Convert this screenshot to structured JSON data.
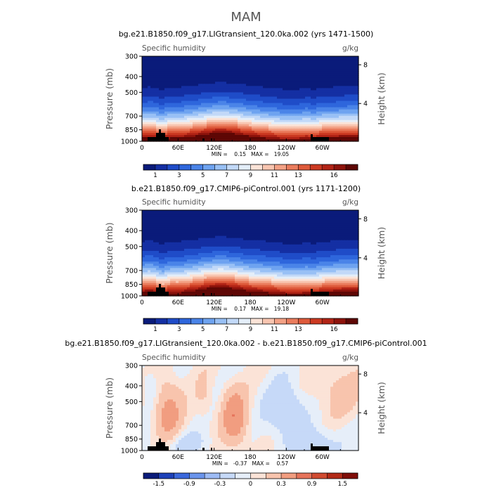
{
  "figure_title": "MAM",
  "chart_data": [
    {
      "type": "heatmap",
      "title": "bg.e21.B1850.f09_g17.LIGtransient_120.0ka.002 (yrs 1471-1500)",
      "variable": "Specific humidity",
      "units": "g/kg",
      "ylabel": "Pressure (mb)",
      "ylabel_right": "Height (km)",
      "pressure_ticks": [
        "300",
        "400",
        "500",
        "700",
        "850",
        "1000"
      ],
      "height_ticks": [
        "8",
        "4"
      ],
      "x_ticks": [
        "0",
        "60E",
        "120E",
        "180",
        "120W",
        "60W"
      ],
      "xlim": [
        0,
        360
      ],
      "ylim": [
        1000,
        300
      ],
      "min_max": "MIN =    0.15   MAX =   19.05",
      "min": 0.15,
      "max": 19.05,
      "colorbar_levels": [
        0,
        1,
        2,
        3,
        4,
        5,
        6,
        7,
        8,
        9,
        10,
        11,
        12,
        13,
        14,
        15,
        16,
        17
      ],
      "colorbar_labels": [
        "1",
        "3",
        "5",
        "7",
        "9",
        "11",
        "13",
        "16"
      ]
    },
    {
      "type": "heatmap",
      "title": "b.e21.B1850.f09_g17.CMIP6-piControl.001 (yrs 1171-1200)",
      "variable": "Specific humidity",
      "units": "g/kg",
      "ylabel": "Pressure (mb)",
      "ylabel_right": "Height (km)",
      "pressure_ticks": [
        "300",
        "400",
        "500",
        "700",
        "850",
        "1000"
      ],
      "height_ticks": [
        "8",
        "4"
      ],
      "x_ticks": [
        "0",
        "60E",
        "120E",
        "180",
        "120W",
        "60W"
      ],
      "xlim": [
        0,
        360
      ],
      "ylim": [
        1000,
        300
      ],
      "min_max": "MIN =    0.17   MAX =   19.18",
      "min": 0.17,
      "max": 19.18,
      "colorbar_levels": [
        0,
        1,
        2,
        3,
        4,
        5,
        6,
        7,
        8,
        9,
        10,
        11,
        12,
        13,
        14,
        15,
        16,
        17
      ],
      "colorbar_labels": [
        "1",
        "3",
        "5",
        "7",
        "9",
        "11",
        "13",
        "16"
      ]
    },
    {
      "type": "heatmap",
      "title": "bg.e21.B1850.f09_g17.LIGtransient_120.0ka.002 - b.e21.B1850.f09_g17.CMIP6-piControl.001",
      "variable": "Specific humidity",
      "units": "g/kg",
      "ylabel": "Pressure (mb)",
      "ylabel_right": "Height (km)",
      "pressure_ticks": [
        "300",
        "400",
        "500",
        "700",
        "850",
        "1000"
      ],
      "height_ticks": [
        "8",
        "4"
      ],
      "x_ticks": [
        "0",
        "60E",
        "120E",
        "180",
        "120W",
        "60W"
      ],
      "xlim": [
        0,
        360
      ],
      "ylim": [
        1000,
        300
      ],
      "min_max": "MIN =   -0.37   MAX =    0.57",
      "min": -0.37,
      "max": 0.57,
      "colorbar_levels": [
        -2,
        -1.5,
        -1.2,
        -0.9,
        -0.6,
        -0.3,
        -0.1,
        0,
        0.1,
        0.3,
        0.6,
        0.9,
        1.2,
        1.5,
        2
      ],
      "colorbar_labels": [
        "-1.5",
        "-0.9",
        "-0.3",
        "0",
        "0.3",
        "0.9",
        "1.5"
      ]
    }
  ],
  "palettes": {
    "humidity": [
      "#0a1b7a",
      "#142fa3",
      "#1f4cc8",
      "#2e66dc",
      "#4a84e8",
      "#6ea3f0",
      "#98c0f5",
      "#c2d9f8",
      "#e4eef9",
      "#fbe3d7",
      "#f8c5b0",
      "#f3a185",
      "#ea7c5d",
      "#de5a3b",
      "#cc3a22",
      "#b22416",
      "#8e130c",
      "#5e0705"
    ],
    "difference": [
      "#0a1b7a",
      "#1c40b8",
      "#3a68dc",
      "#6a94ec",
      "#9dbbf5",
      "#c6d9f8",
      "#e6eef9",
      "#fbe3d7",
      "#f8c4ad",
      "#f19d80",
      "#e6735a",
      "#d04a30",
      "#b22a17",
      "#800d08"
    ],
    "topography": "#000000"
  }
}
